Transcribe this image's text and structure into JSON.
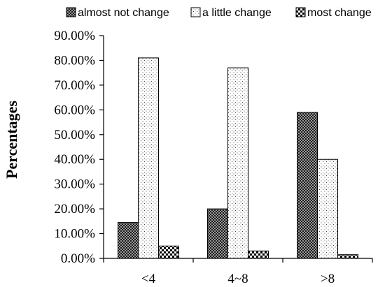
{
  "chart_data": {
    "type": "bar",
    "categories": [
      "<4",
      "4~8",
      ">8"
    ],
    "series": [
      {
        "name": "almost not change",
        "values": [
          14.5,
          20.0,
          59.0
        ],
        "pattern": "dark-checker"
      },
      {
        "name": "a little change",
        "values": [
          81.0,
          77.0,
          40.0
        ],
        "pattern": "dots"
      },
      {
        "name": "most change",
        "values": [
          5.0,
          3.0,
          1.5
        ],
        "pattern": "checker"
      }
    ],
    "ylabel": "Percentages",
    "xlabel": "",
    "ylim": [
      0,
      90
    ],
    "yticks": [
      "0.00%",
      "10.00%",
      "20.00%",
      "30.00%",
      "40.00%",
      "50.00%",
      "60.00%",
      "70.00%",
      "80.00%",
      "90.00%"
    ],
    "grid": false,
    "legend_position": "top"
  }
}
